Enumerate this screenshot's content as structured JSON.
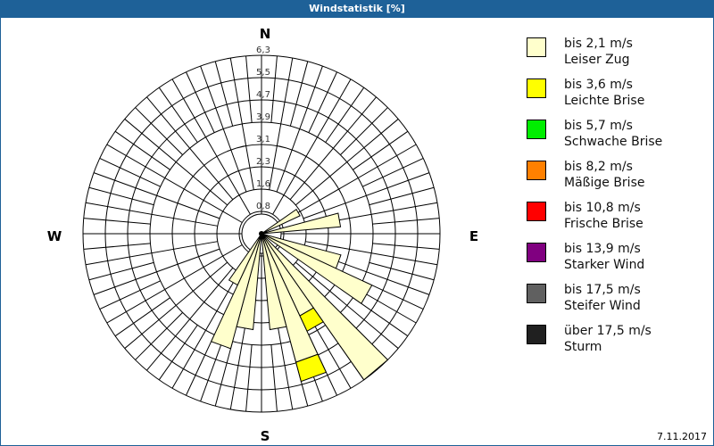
{
  "title": "Windstatistik [%]",
  "date": "7.11.2017",
  "compass": {
    "n": "N",
    "e": "E",
    "s": "S",
    "w": "W"
  },
  "legend": [
    {
      "range": "bis 2,1 m/s",
      "name": "Leiser Zug",
      "color": "#ffffcc"
    },
    {
      "range": "bis 3,6 m/s",
      "name": "Leichte Brise",
      "color": "#ffff00"
    },
    {
      "range": "bis 5,7 m/s",
      "name": "Schwache Brise",
      "color": "#00ee00"
    },
    {
      "range": "bis 8,2 m/s",
      "name": "Mäßige Brise",
      "color": "#ff8000"
    },
    {
      "range": "bis 10,8 m/s",
      "name": "Frische Brise",
      "color": "#ff0000"
    },
    {
      "range": "bis 13,9 m/s",
      "name": "Starker Wind",
      "color": "#800080"
    },
    {
      "range": "bis 17,5 m/s",
      "name": "Steifer Wind",
      "color": "#606060"
    },
    {
      "range": "über 17,5 m/s",
      "name": "Sturm",
      "color": "#202020"
    }
  ],
  "chart_data": {
    "type": "polar-bar (wind rose)",
    "title": "Windstatistik [%]",
    "radial_ticks": [
      "0,8",
      "1,6",
      "2,3",
      "3,1",
      "3,9",
      "4,7",
      "5,5",
      "6,3"
    ],
    "rmax": 6.3,
    "sector_width_deg": 10,
    "series_names": [
      "bis 2,1 m/s",
      "bis 3,6 m/s"
    ],
    "bars": [
      {
        "dir_deg": 60,
        "leiser_zug": 1.5,
        "leichte_brise": 0
      },
      {
        "dir_deg": 80,
        "leiser_zug": 2.8,
        "leichte_brise": 0
      },
      {
        "dir_deg": 110,
        "leiser_zug": 2.9,
        "leichte_brise": 0
      },
      {
        "dir_deg": 120,
        "leiser_zug": 4.3,
        "leichte_brise": 0
      },
      {
        "dir_deg": 140,
        "leiser_zug": 6.3,
        "leichte_brise": 0
      },
      {
        "dir_deg": 150,
        "leiser_zug": 3.2,
        "leichte_brise": 0.6
      },
      {
        "dir_deg": 160,
        "leiser_zug": 4.7,
        "leichte_brise": 0.7
      },
      {
        "dir_deg": 170,
        "leiser_zug": 3.4,
        "leichte_brise": 0
      },
      {
        "dir_deg": 190,
        "leiser_zug": 3.4,
        "leichte_brise": 0
      },
      {
        "dir_deg": 200,
        "leiser_zug": 4.2,
        "leichte_brise": 0
      },
      {
        "dir_deg": 210,
        "leiser_zug": 2.0,
        "leichte_brise": 0
      }
    ]
  }
}
